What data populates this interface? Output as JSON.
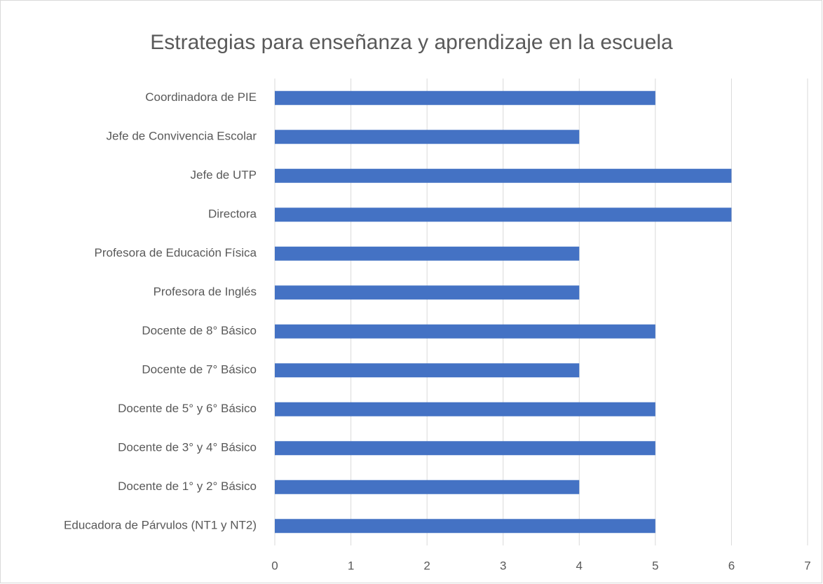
{
  "chart_data": {
    "type": "bar",
    "orientation": "horizontal",
    "title": "Estrategias para enseñanza y aprendizaje en la escuela",
    "categories": [
      "Coordinadora de PIE",
      "Jefe de Convivencia Escolar",
      "Jefe de UTP",
      "Directora",
      "Profesora de Educación Física",
      "Profesora de Inglés",
      "Docente de 8° Básico",
      "Docente de 7° Básico",
      "Docente de 5° y 6° Básico",
      "Docente de 3° y 4° Básico",
      "Docente de 1° y 2° Básico",
      "Educadora de Párvulos (NT1 y NT2)"
    ],
    "values": [
      5,
      4,
      6,
      6,
      4,
      4,
      5,
      4,
      5,
      5,
      4,
      5
    ],
    "color": "#4472c4",
    "xlim": [
      0,
      7
    ],
    "xticks": [
      0,
      1,
      2,
      3,
      4,
      5,
      6,
      7
    ],
    "grid": true
  }
}
